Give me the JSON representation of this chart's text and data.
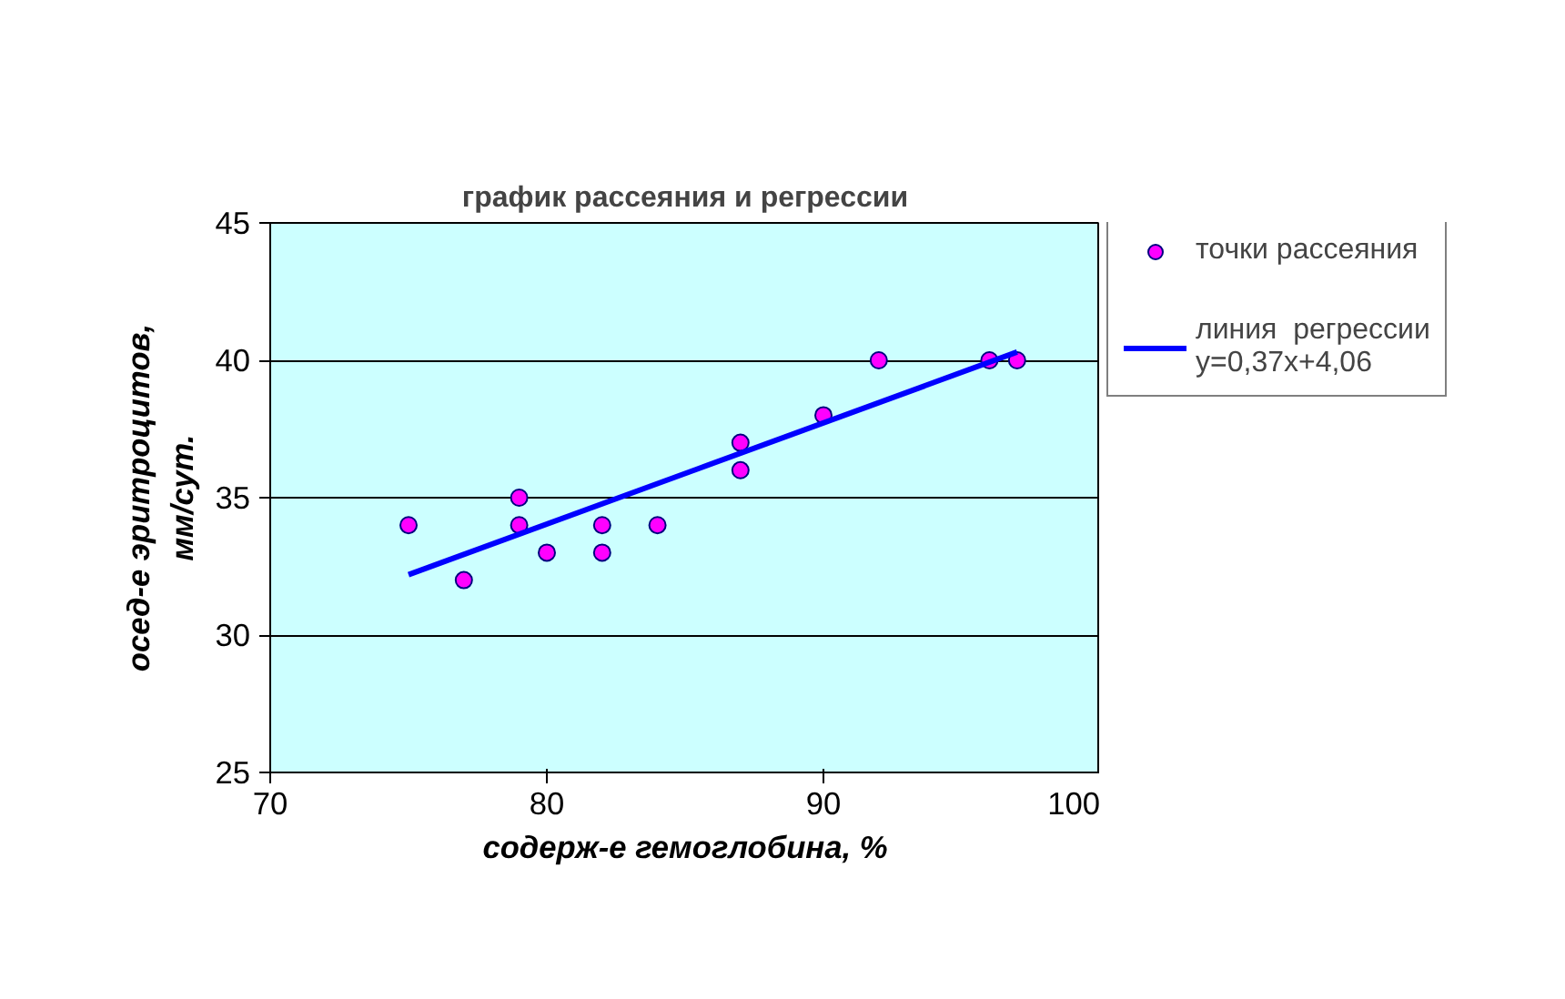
{
  "chart_data": {
    "type": "scatter",
    "title": "график рассеяния и регрессии",
    "xlabel": "содерж-е гемоглобина, %",
    "ylabel": "осед-е эритроцитов,\nмм/сут.",
    "xlim": [
      70,
      100
    ],
    "xticks": [
      70,
      80,
      90,
      100
    ],
    "ylim": [
      25,
      45
    ],
    "yticks": [
      25,
      30,
      35,
      40,
      45
    ],
    "grid": "y",
    "legend": "right",
    "series": [
      {
        "name": "точки рассеяния",
        "type": "scatter",
        "marker": "circle",
        "color": "#ff00ff",
        "x": [
          75,
          77,
          79,
          79,
          80,
          82,
          82,
          84,
          87,
          87,
          90,
          92,
          96,
          97
        ],
        "values": [
          34,
          32,
          35,
          34,
          33,
          34,
          33,
          34,
          37,
          36,
          38,
          40,
          40,
          40
        ]
      },
      {
        "name": "линия  регрессии\ny=0,37x+4,06",
        "type": "line",
        "marker": "none",
        "color": "#0000ff",
        "x": [
          75,
          97
        ],
        "values": [
          32.2,
          40.3
        ]
      }
    ]
  }
}
